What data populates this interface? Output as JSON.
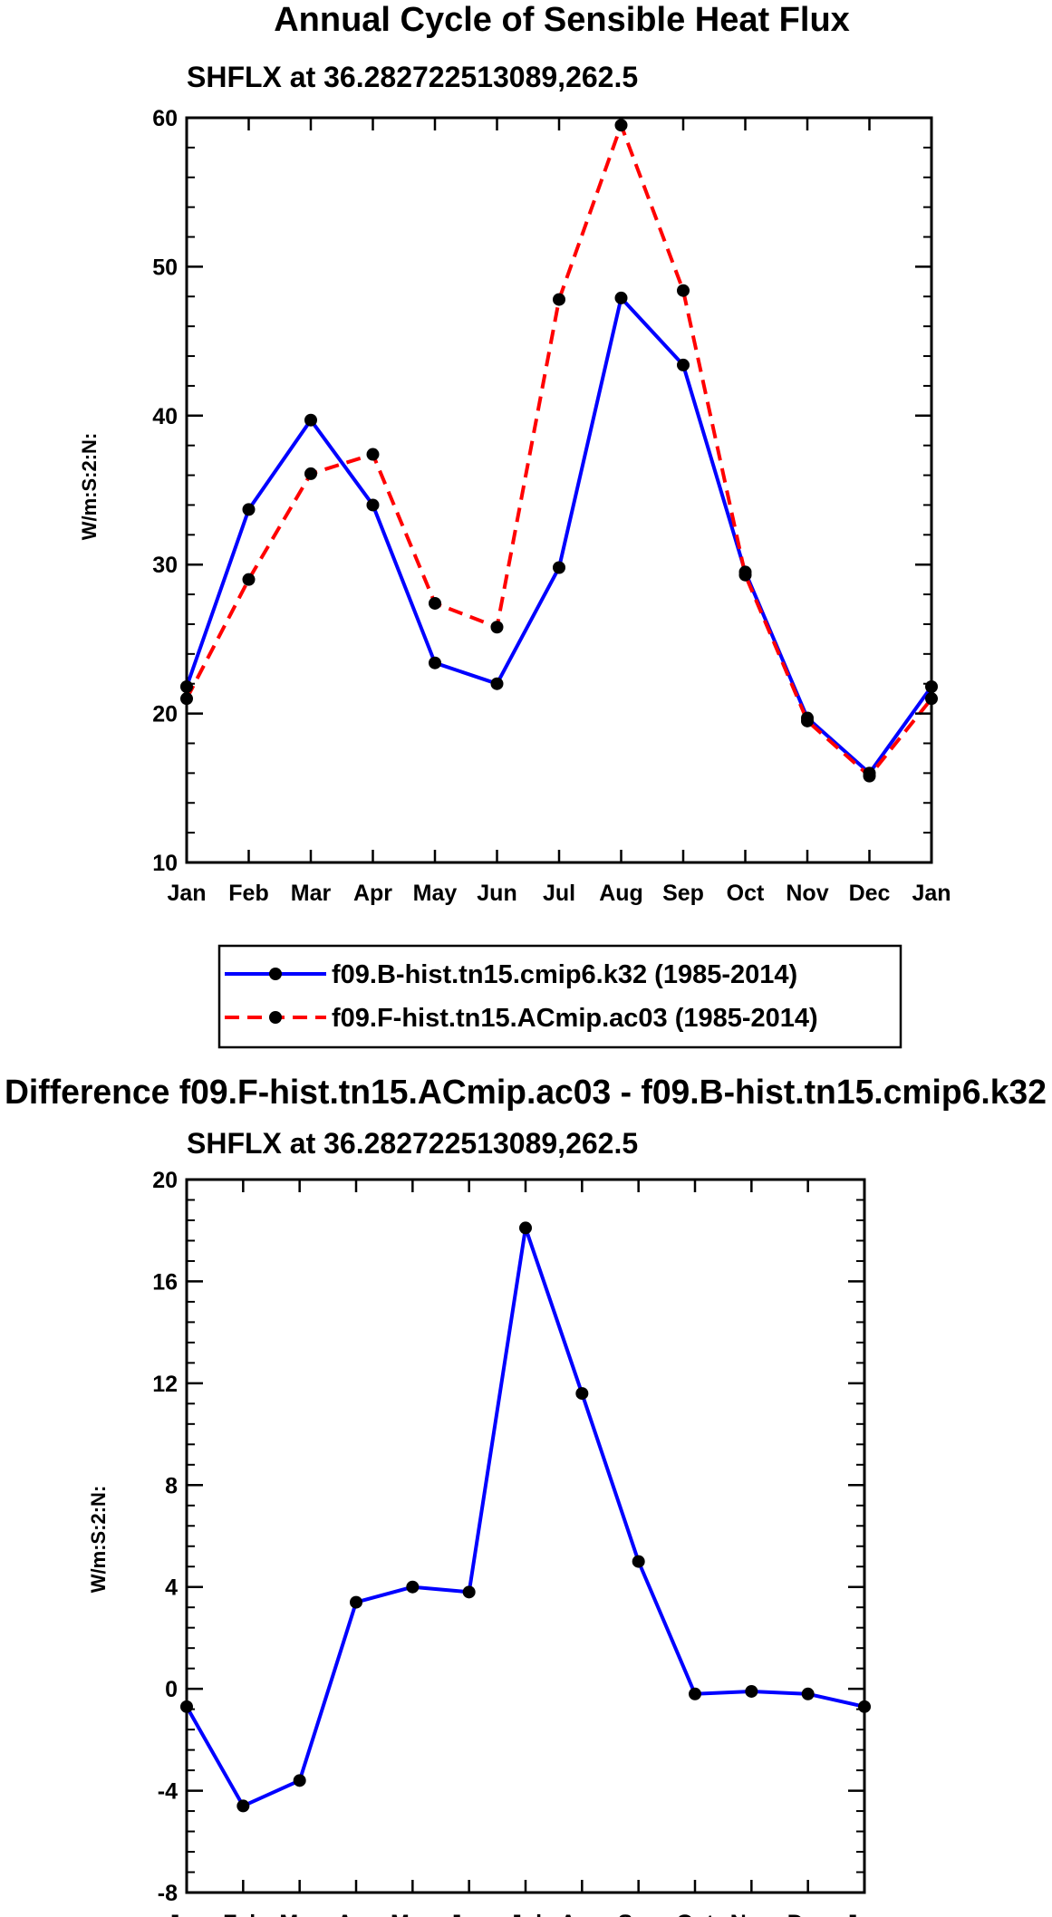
{
  "chart_data": [
    {
      "type": "line",
      "title": "Annual Cycle of Sensible Heat Flux",
      "subtitle": "SHFLX at 36.282722513089,262.5",
      "ylabel": "W/m:S:2:N:",
      "xlabel": "",
      "ylim": [
        10,
        60
      ],
      "yticks": [
        10,
        20,
        30,
        40,
        50,
        60
      ],
      "categories": [
        "Jan",
        "Feb",
        "Mar",
        "Apr",
        "May",
        "Jun",
        "Jul",
        "Aug",
        "Sep",
        "Oct",
        "Nov",
        "Dec",
        "Jan"
      ],
      "legend_position": "bottom-center",
      "series": [
        {
          "name": "f09.B-hist.tn15.cmip6.k32 (1985-2014)",
          "color": "#0000ff",
          "dash": "solid",
          "values": [
            21.8,
            33.7,
            39.7,
            34.0,
            23.4,
            22.0,
            29.8,
            47.9,
            43.4,
            29.5,
            19.7,
            16.0,
            21.8
          ]
        },
        {
          "name": "f09.F-hist.tn15.ACmip.ac03 (1985-2014)",
          "color": "#ff0000",
          "dash": "dashed",
          "values": [
            21.0,
            29.0,
            36.1,
            37.4,
            27.4,
            25.8,
            47.8,
            59.5,
            48.4,
            29.3,
            19.5,
            15.8,
            21.0
          ]
        }
      ]
    },
    {
      "type": "line",
      "title": "Difference f09.F-hist.tn15.ACmip.ac03 - f09.B-hist.tn15.cmip6.k32",
      "subtitle": "SHFLX at 36.282722513089,262.5",
      "ylabel": "W/m:S:2:N:",
      "xlabel": "",
      "ylim": [
        -8,
        20
      ],
      "yticks": [
        -8,
        -4,
        0,
        4,
        8,
        12,
        16,
        20
      ],
      "categories": [
        "Jan",
        "Feb",
        "Mar",
        "Apr",
        "May",
        "Jun",
        "Jul",
        "Aug",
        "Sep",
        "Oct",
        "Nov",
        "Dec",
        "Jan"
      ],
      "series": [
        {
          "name": "Difference",
          "color": "#0000ff",
          "dash": "solid",
          "values": [
            -0.7,
            -4.6,
            -3.6,
            3.4,
            4.0,
            3.8,
            18.1,
            11.6,
            5.0,
            -0.2,
            -0.1,
            -0.2,
            -0.7
          ]
        }
      ]
    }
  ]
}
